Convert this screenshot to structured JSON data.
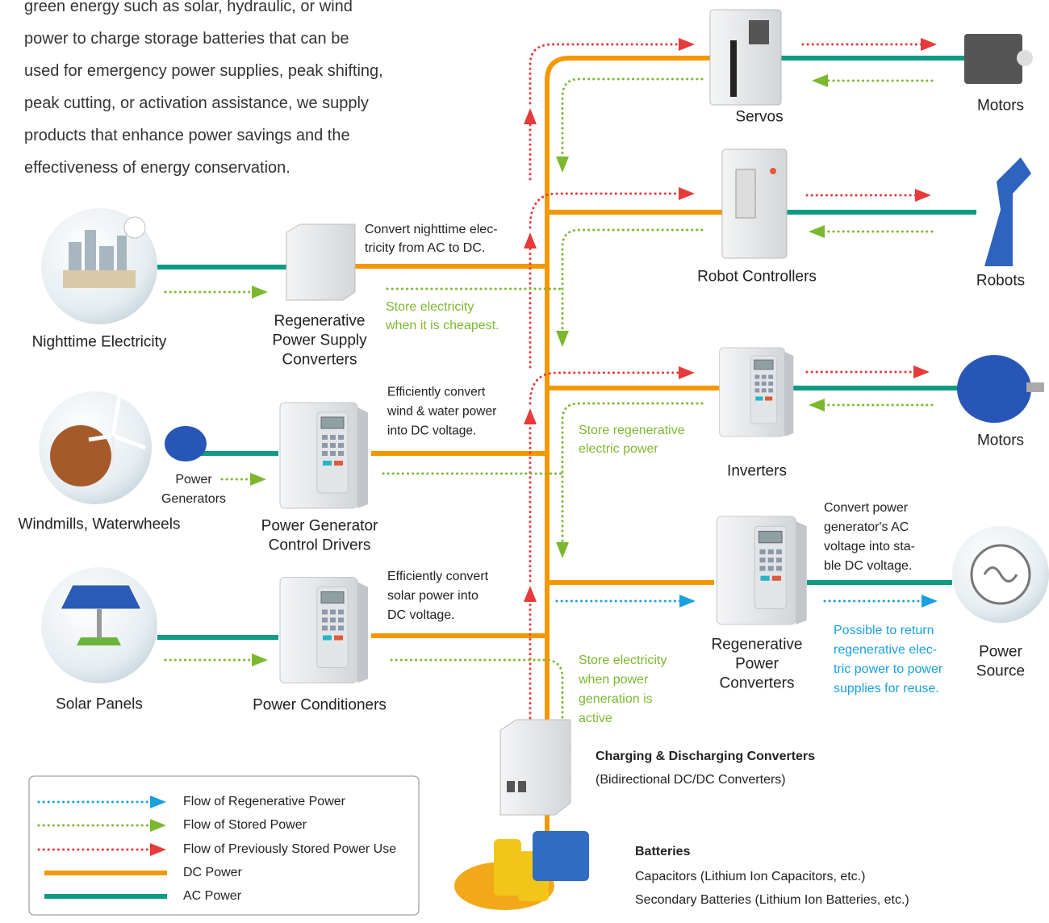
{
  "intro": {
    "lines": [
      "green energy such as solar, hydraulic, or wind",
      "power to charge storage batteries that can be",
      "used for emergency power supplies, peak shifting,",
      "peak cutting, or activation assistance, we supply",
      "products that enhance power savings and the",
      "effectiveness of energy conservation."
    ]
  },
  "nodes": [
    {
      "label": [
        "Nighttime Electricity"
      ]
    },
    {
      "label": [
        "Regenerative",
        "Power Supply",
        "Converters"
      ]
    },
    {
      "label": [
        "Power",
        "Generators"
      ]
    },
    {
      "label": [
        "Windmills, Waterwheels"
      ]
    },
    {
      "label": [
        "Power Generator",
        "Control Drivers"
      ]
    },
    {
      "label": [
        "Solar Panels"
      ]
    },
    {
      "label": [
        "Power Conditioners"
      ]
    },
    {
      "label": [
        "Servos"
      ]
    },
    {
      "label": [
        "Motors"
      ]
    },
    {
      "label": [
        "Robot Controllers"
      ]
    },
    {
      "label": [
        "Robots"
      ]
    },
    {
      "label": [
        "Inverters"
      ]
    },
    {
      "label": [
        "Motors"
      ]
    },
    {
      "label": [
        "Regenerative",
        "Power",
        "Converters"
      ]
    },
    {
      "label": [
        "Power",
        "Source"
      ]
    }
  ],
  "notes": [
    {
      "lines": [
        "Convert nighttime elec-",
        "tricity from AC to DC."
      ]
    },
    {
      "lines": [
        "Store electricity",
        "when it is cheapest."
      ]
    },
    {
      "lines": [
        "Efficiently convert",
        "wind & water power",
        "into DC voltage."
      ]
    },
    {
      "lines": [
        "Store regenerative",
        "electric power"
      ]
    },
    {
      "lines": [
        "Efficiently convert",
        "solar power into",
        "DC voltage."
      ]
    },
    {
      "lines": [
        "Store electricity",
        "when power",
        "generation is",
        "active"
      ]
    },
    {
      "lines": [
        "Convert power",
        "generator's AC",
        "voltage into sta-",
        "ble DC voltage."
      ]
    },
    {
      "lines": [
        "Possible to return",
        "regenerative elec-",
        "tric power to power",
        "supplies for reuse."
      ]
    }
  ],
  "converter": {
    "title": "Charging & Discharging Converters",
    "subtitle": "(Bidirectional DC/DC Converters)"
  },
  "batteries": {
    "title": "Batteries",
    "items": [
      "Capacitors (Lithium Ion Capacitors, etc.)",
      "Secondary Batteries (Lithium Ion Batteries, etc.)"
    ]
  },
  "legend": {
    "items": [
      "Flow of Regenerative Power",
      "Flow of Stored Power",
      "Flow of Previously Stored Power Use",
      "DC Power",
      "AC Power"
    ]
  }
}
